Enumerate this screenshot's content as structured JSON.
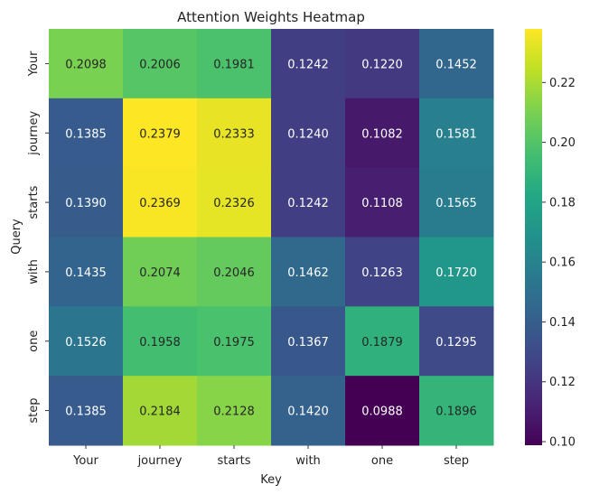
{
  "chart_data": {
    "type": "heatmap",
    "title": "Attention Weights Heatmap",
    "xlabel": "Key",
    "ylabel": "Query",
    "x_categories": [
      "Your",
      "journey",
      "starts",
      "with",
      "one",
      "step"
    ],
    "y_categories": [
      "Your",
      "journey",
      "starts",
      "with",
      "one",
      "step"
    ],
    "values": [
      [
        0.2098,
        0.2006,
        0.1981,
        0.1242,
        0.122,
        0.1452
      ],
      [
        0.1385,
        0.2379,
        0.2333,
        0.124,
        0.1082,
        0.1581
      ],
      [
        0.139,
        0.2369,
        0.2326,
        0.1242,
        0.1108,
        0.1565
      ],
      [
        0.1435,
        0.2074,
        0.2046,
        0.1462,
        0.1263,
        0.172
      ],
      [
        0.1526,
        0.1958,
        0.1975,
        0.1367,
        0.1879,
        0.1295
      ],
      [
        0.1385,
        0.2184,
        0.2128,
        0.142,
        0.0988,
        0.1896
      ]
    ],
    "value_format": "0.0000",
    "colormap": "viridis",
    "colorbar": {
      "min": 0.0988,
      "max": 0.2379,
      "ticks": [
        0.1,
        0.12,
        0.14,
        0.16,
        0.18,
        0.2,
        0.22
      ],
      "tick_labels": [
        "0.10",
        "0.12",
        "0.14",
        "0.16",
        "0.18",
        "0.20",
        "0.22"
      ]
    }
  }
}
